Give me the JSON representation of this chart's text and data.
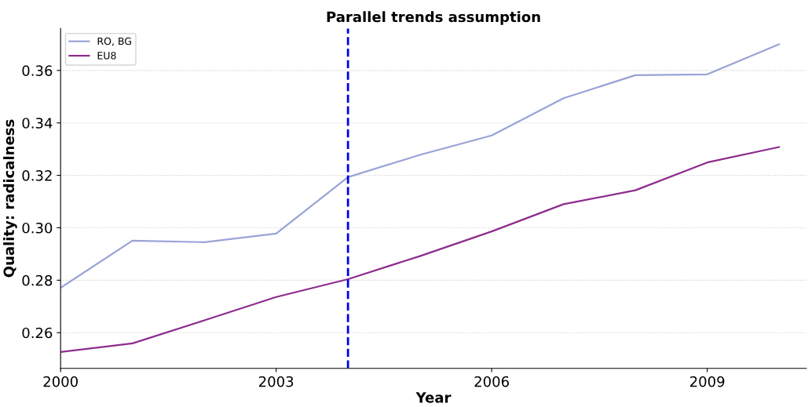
{
  "chart_data": {
    "type": "line",
    "title": "Parallel trends assumption",
    "xlabel": "Year",
    "ylabel": "Quality: radicalness",
    "x": [
      2000,
      2001,
      2002,
      2003,
      2004,
      2005,
      2006,
      2007,
      2008,
      2009,
      2010
    ],
    "series": [
      {
        "name": "RO, BG",
        "color": "#9aa3d6",
        "values": [
          0.2771,
          0.2951,
          0.2945,
          0.2978,
          0.3193,
          0.3278,
          0.3352,
          0.3494,
          0.3582,
          0.3585,
          0.37
        ]
      },
      {
        "name": "EU8",
        "color": "#8e2c8e",
        "values": [
          0.2526,
          0.2559,
          0.2647,
          0.2736,
          0.2804,
          0.2892,
          0.2986,
          0.309,
          0.3143,
          0.3249,
          0.3308
        ]
      }
    ],
    "xlim": [
      2000,
      2010.38
    ],
    "xticks": [
      2000,
      2003,
      2006,
      2009
    ],
    "ylim": [
      0.2464,
      0.376
    ],
    "yticks": [
      {
        "value": 0.26,
        "label": "0.26"
      },
      {
        "value": 0.28,
        "label": "0.28"
      },
      {
        "value": 0.3,
        "label": "0.30"
      },
      {
        "value": 0.32,
        "label": "0.32"
      },
      {
        "value": 0.34,
        "label": "0.34"
      },
      {
        "value": 0.36,
        "label": "0.36"
      }
    ],
    "ref_lines": [
      {
        "axis": "x",
        "value": 2004,
        "color": "#0000ee",
        "line_style": "dashed"
      }
    ],
    "grid": "y",
    "legend": "top left",
    "marker": "none",
    "line_style": "solid"
  }
}
